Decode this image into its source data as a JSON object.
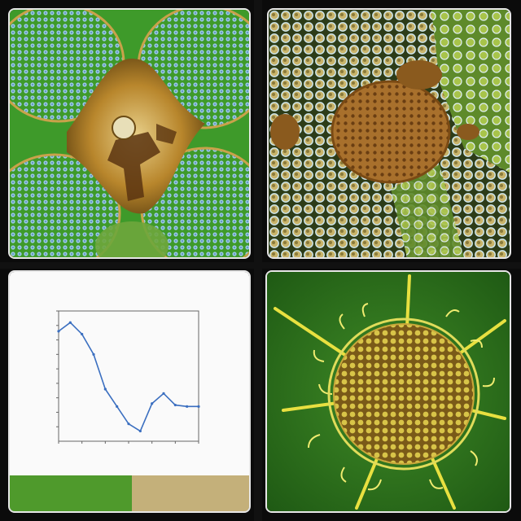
{
  "panels": [
    {
      "name": "top-left",
      "subject": "micrograph-blue-cells-golden-center"
    },
    {
      "name": "top-right",
      "subject": "micrograph-brown-sphere-mesh"
    },
    {
      "name": "bottom-left",
      "subject": "line-chart"
    },
    {
      "name": "bottom-right",
      "subject": "micrograph-radiolarian-yellow"
    }
  ],
  "colors": {
    "frame": "#e6e6e6",
    "background": "#0b0b0b",
    "line": "#3b6fc0",
    "green": "#2e7d1e",
    "blue_cells": "#7fb5d8",
    "gold": "#b8862c",
    "yellow": "#e8e040"
  },
  "chart_data": {
    "type": "line",
    "title": "",
    "xlabel": "",
    "ylabel": "",
    "x": [
      0,
      1,
      2,
      3,
      4,
      5,
      6,
      7,
      8,
      9,
      10,
      11,
      12
    ],
    "series": [
      {
        "values": [
          8.6,
          9.2,
          8.4,
          7.0,
          4.6,
          3.4,
          2.2,
          1.7,
          3.6,
          4.3,
          3.5,
          3.4,
          3.4
        ]
      }
    ],
    "xlim": [
      0,
      12
    ],
    "ylim": [
      1,
      10
    ],
    "grid": false
  }
}
